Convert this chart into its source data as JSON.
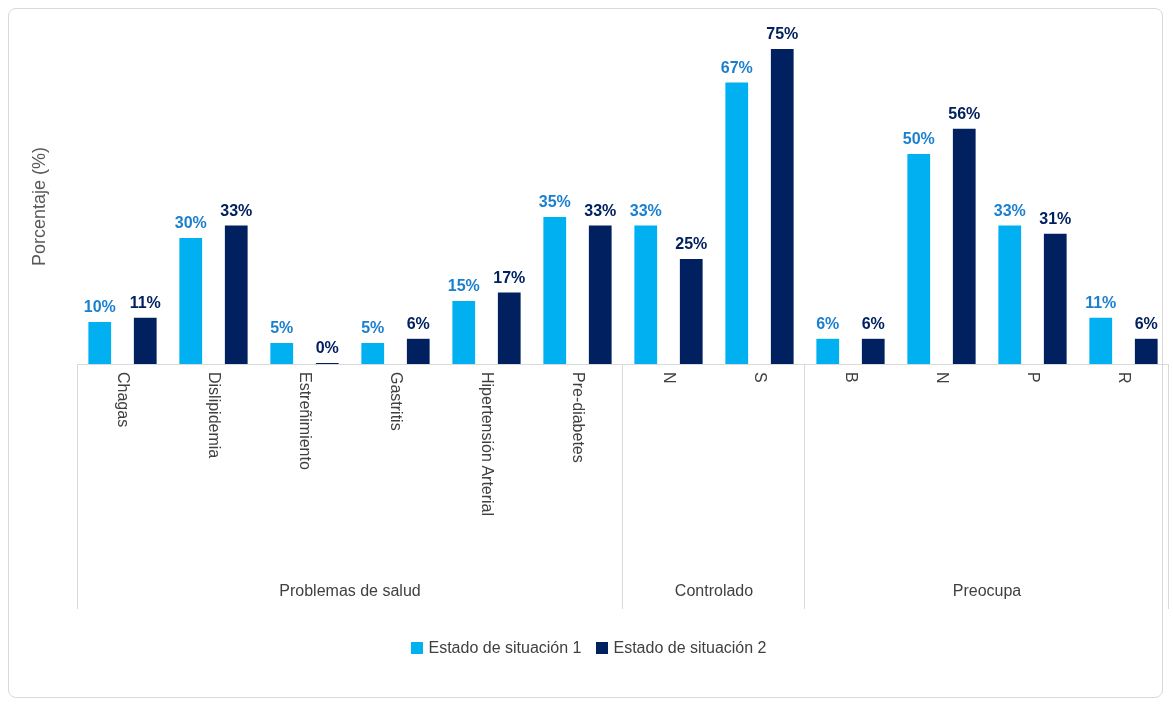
{
  "chart_data": [
    {
      "type": "bar",
      "ylabel": "Porcentaje (%)",
      "xlabel": "Problemas de salud",
      "legend": "bottom",
      "categories": [
        "Chagas",
        "Dislipidemia",
        "Estreñimiento",
        "Gastritis",
        "Hipertensión Arterial",
        "Pre-diabetes"
      ],
      "series": [
        {
          "name": "Estado de situación 1",
          "color": "#00b0f0",
          "values": [
            10,
            30,
            5,
            5,
            15,
            35
          ],
          "value_labels": [
            "10%",
            "30%",
            "5%",
            "5%",
            "15%",
            "35%"
          ]
        },
        {
          "name": "Estado de situación 2",
          "color": "#002060",
          "values": [
            11,
            33,
            0,
            6,
            17,
            33
          ],
          "value_labels": [
            "11%",
            "33%",
            "0%",
            "6%",
            "17%",
            "33%"
          ]
        }
      ]
    },
    {
      "type": "bar",
      "xlabel": "Controlado",
      "categories": [
        "N",
        "S"
      ],
      "series": [
        {
          "color": "#00b0f0",
          "values": [
            33,
            67
          ],
          "value_labels": [
            "33%",
            "67%"
          ]
        },
        {
          "color": "#002060",
          "values": [
            25,
            75
          ],
          "value_labels": [
            "25%",
            "75%"
          ]
        }
      ]
    },
    {
      "type": "bar",
      "xlabel": "Preocupa",
      "categories": [
        "B",
        "N",
        "P",
        "R"
      ],
      "series": [
        {
          "color": "#00b0f0",
          "values": [
            6,
            50,
            33,
            11
          ],
          "value_labels": [
            "6%",
            "50%",
            "33%",
            "11%"
          ]
        },
        {
          "color": "#002060",
          "values": [
            6,
            56,
            31,
            6
          ],
          "value_labels": [
            "6%",
            "56%",
            "31%",
            "6%"
          ]
        }
      ]
    }
  ]
}
